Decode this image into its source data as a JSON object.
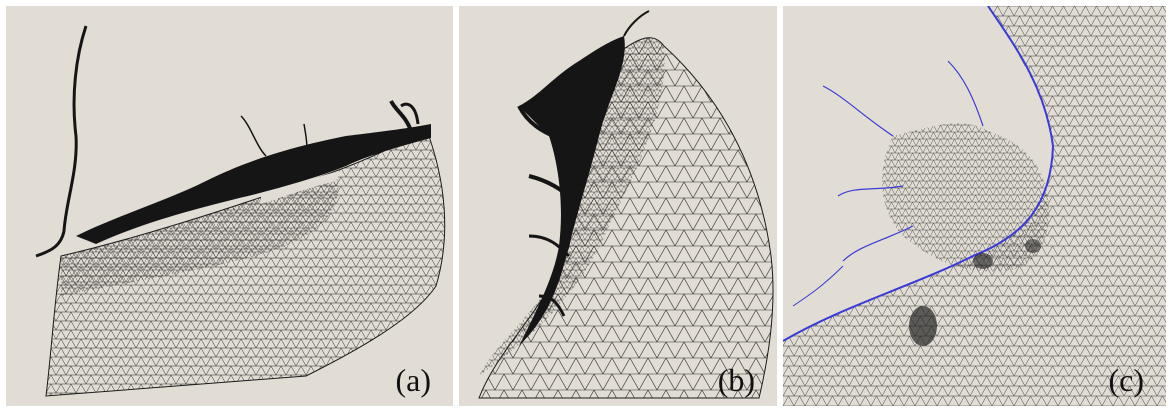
{
  "colors": {
    "background": "#e2ddd4",
    "mesh": "#222222",
    "land": "#151515",
    "coastline": "#3a3ad8"
  },
  "panels": [
    {
      "id": "a",
      "label": "(a)"
    },
    {
      "id": "b",
      "label": "(b)"
    },
    {
      "id": "c",
      "label": "(c)"
    }
  ]
}
